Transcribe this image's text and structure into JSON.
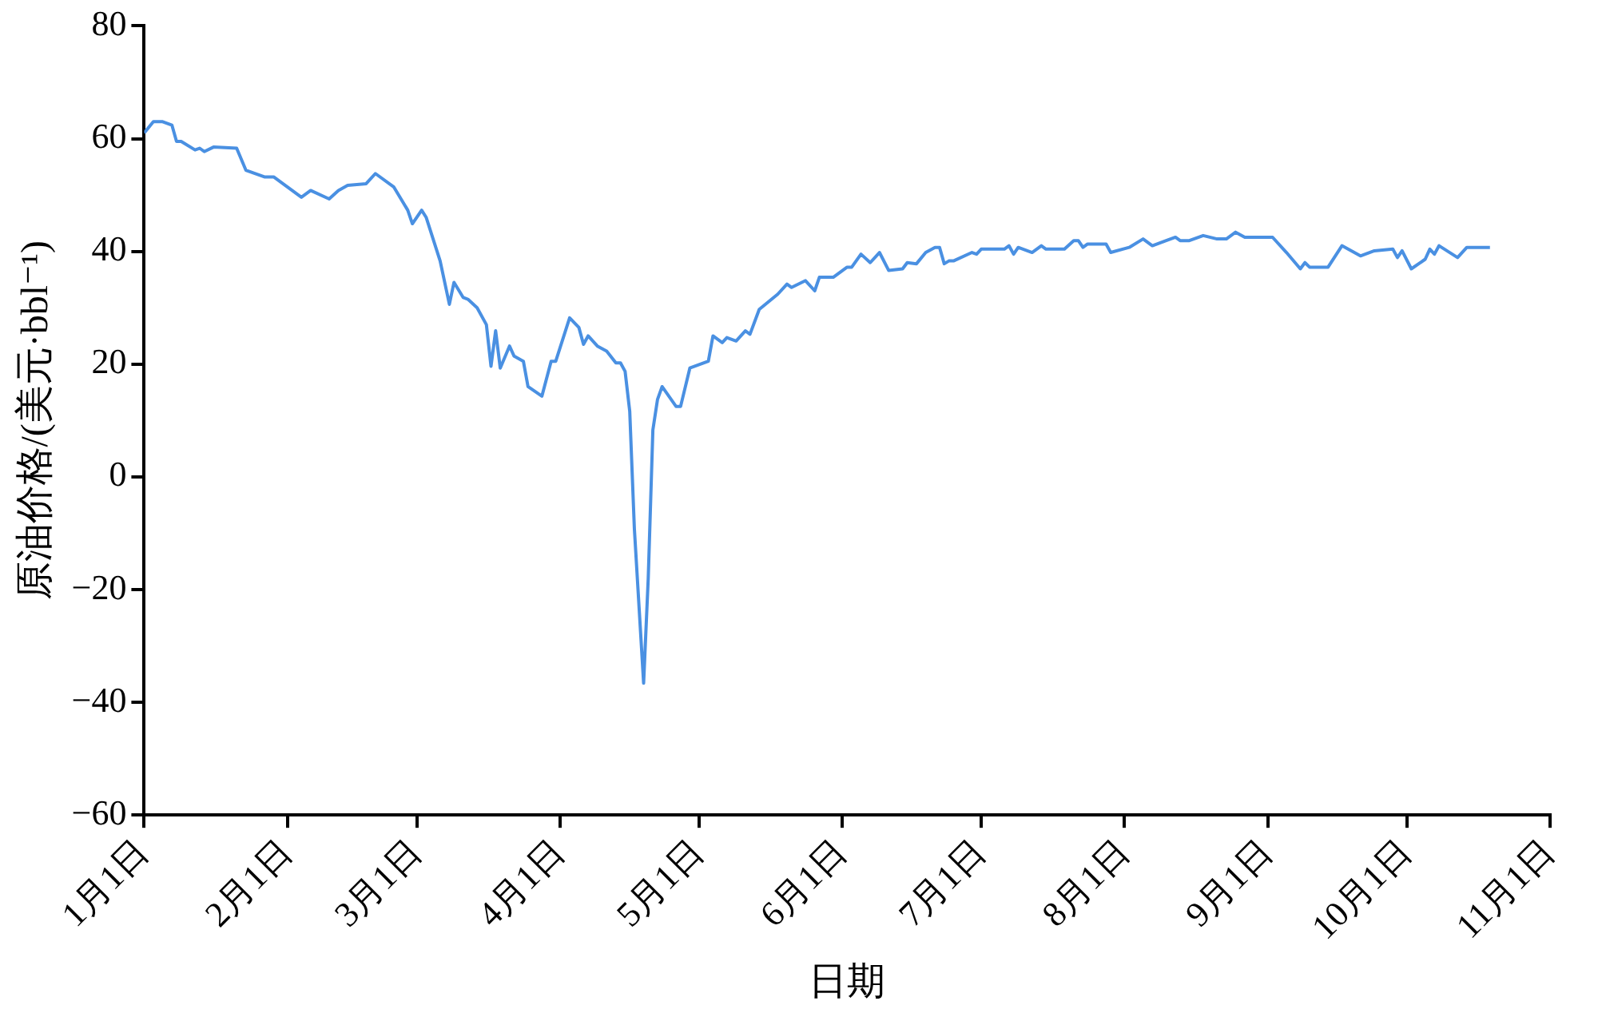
{
  "chart_data": {
    "type": "line",
    "xlabel": "日期",
    "ylabel": "原油价格/(美元·bbl⁻¹)",
    "xlim": [
      "--01-01",
      "--11-01"
    ],
    "xticks": [
      {
        "value": "--01-01",
        "label": "1月1日"
      },
      {
        "value": "--02-01",
        "label": "2月1日"
      },
      {
        "value": "--03-01",
        "label": "3月1日"
      },
      {
        "value": "--04-01",
        "label": "4月1日"
      },
      {
        "value": "--05-01",
        "label": "5月1日"
      },
      {
        "value": "--06-01",
        "label": "6月1日"
      },
      {
        "value": "--07-01",
        "label": "7月1日"
      },
      {
        "value": "--08-01",
        "label": "8月1日"
      },
      {
        "value": "--09-01",
        "label": "9月1日"
      },
      {
        "value": "--10-01",
        "label": "10月1日"
      },
      {
        "value": "--11-01",
        "label": "11月1日"
      }
    ],
    "ylim": [
      -60,
      80
    ],
    "yticks": [
      {
        "value": -60,
        "label": "−60"
      },
      {
        "value": -40,
        "label": "−40"
      },
      {
        "value": -20,
        "label": "−20"
      },
      0,
      20,
      40,
      60,
      80
    ],
    "marker": "none",
    "line_style": "solid",
    "series": [
      {
        "color": "#4a90e2",
        "x": [
          "--01-01",
          "--01-03",
          "--01-05",
          "--01-07",
          "--01-08",
          "--01-09",
          "--01-12",
          "--01-13",
          "--01-14",
          "--01-16",
          "--01-21",
          "--01-23",
          "--01-27",
          "--01-29",
          "--02-04",
          "--02-06",
          "--02-10",
          "--02-12",
          "--02-14",
          "--02-18",
          "--02-20",
          "--02-24",
          "--02-27",
          "--02-28",
          "--03-02",
          "--03-03",
          "--03-06",
          "--03-08",
          "--03-09",
          "--03-11",
          "--03-12",
          "--03-14",
          "--03-16",
          "--03-17",
          "--03-18",
          "--03-19",
          "--03-21",
          "--03-22",
          "--03-24",
          "--03-25",
          "--03-28",
          "--03-30",
          "--03-31",
          "--04-03",
          "--04-05",
          "--04-06",
          "--04-07",
          "--04-09",
          "--04-11",
          "--04-13",
          "--04-14",
          "--04-15",
          "--04-16",
          "--04-17",
          "--04-19",
          "--04-20",
          "--04-21",
          "--04-22",
          "--04-23",
          "--04-26",
          "--04-27",
          "--04-29",
          "--05-03",
          "--05-04",
          "--05-06",
          "--05-07",
          "--05-09",
          "--05-11",
          "--05-12",
          "--05-14",
          "--05-18",
          "--05-20",
          "--05-21",
          "--05-24",
          "--05-26",
          "--05-27",
          "--05-30",
          "--06-02",
          "--06-03",
          "--06-05",
          "--06-07",
          "--06-09",
          "--06-11",
          "--06-14",
          "--06-15",
          "--06-17",
          "--06-19",
          "--06-21",
          "--06-22",
          "--06-23",
          "--06-24",
          "--06-25",
          "--06-29",
          "--06-30",
          "--07-01",
          "--07-06",
          "--07-07",
          "--07-08",
          "--07-09",
          "--07-12",
          "--07-14",
          "--07-15",
          "--07-19",
          "--07-21",
          "--07-22",
          "--07-23",
          "--07-24",
          "--07-26",
          "--07-28",
          "--07-29",
          "--08-02",
          "--08-05",
          "--08-07",
          "--08-10",
          "--08-12",
          "--08-13",
          "--08-15",
          "--08-18",
          "--08-21",
          "--08-23",
          "--08-25",
          "--08-27",
          "--09-02",
          "--09-05",
          "--09-08",
          "--09-09",
          "--09-10",
          "--09-14",
          "--09-17",
          "--09-21",
          "--09-24",
          "--09-28",
          "--09-29",
          "--09-30",
          "--10-02",
          "--10-05",
          "--10-06",
          "--10-07",
          "--10-08",
          "--10-12",
          "--10-14",
          "--10-19"
        ],
        "values": [
          61,
          63,
          63,
          62.4,
          59.5,
          59.5,
          58,
          58.3,
          57.7,
          58.5,
          58.3,
          54.4,
          53.2,
          53.2,
          49.6,
          50.8,
          49.3,
          50.8,
          51.7,
          52,
          53.8,
          51.4,
          47.3,
          44.9,
          47.3,
          46,
          38.3,
          30.6,
          34.5,
          31.8,
          31.5,
          30,
          27,
          19.6,
          25.9,
          19.3,
          23.2,
          21.4,
          20.5,
          16,
          14.3,
          20.5,
          20.5,
          28.2,
          26.5,
          23.5,
          25,
          23.2,
          22.3,
          20.2,
          20.2,
          18.7,
          11.6,
          -9.2,
          -36.6,
          -18,
          8.3,
          13.7,
          16,
          12.5,
          12.5,
          19.3,
          20.5,
          25,
          23.8,
          24.7,
          24.1,
          25.9,
          25.3,
          29.7,
          32.4,
          34.2,
          33.6,
          34.8,
          33,
          35.4,
          35.4,
          37.2,
          37.2,
          39.5,
          38,
          39.8,
          36.6,
          36.9,
          38,
          37.8,
          39.8,
          40.7,
          40.7,
          37.8,
          38.3,
          38.3,
          39.8,
          39.5,
          40.4,
          40.4,
          41,
          39.5,
          40.7,
          39.8,
          41,
          40.4,
          40.4,
          41.9,
          41.9,
          40.7,
          41.3,
          41.3,
          41.3,
          39.8,
          40.7,
          42.2,
          41,
          41.9,
          42.5,
          41.9,
          41.9,
          42.8,
          42.2,
          42.2,
          43.4,
          42.5,
          42.5,
          39.8,
          36.9,
          38,
          37.2,
          37.2,
          41,
          39.2,
          40.1,
          40.4,
          38.9,
          40.1,
          36.9,
          38.6,
          40.4,
          39.5,
          41,
          38.9,
          40.7,
          40.7
        ]
      }
    ]
  }
}
